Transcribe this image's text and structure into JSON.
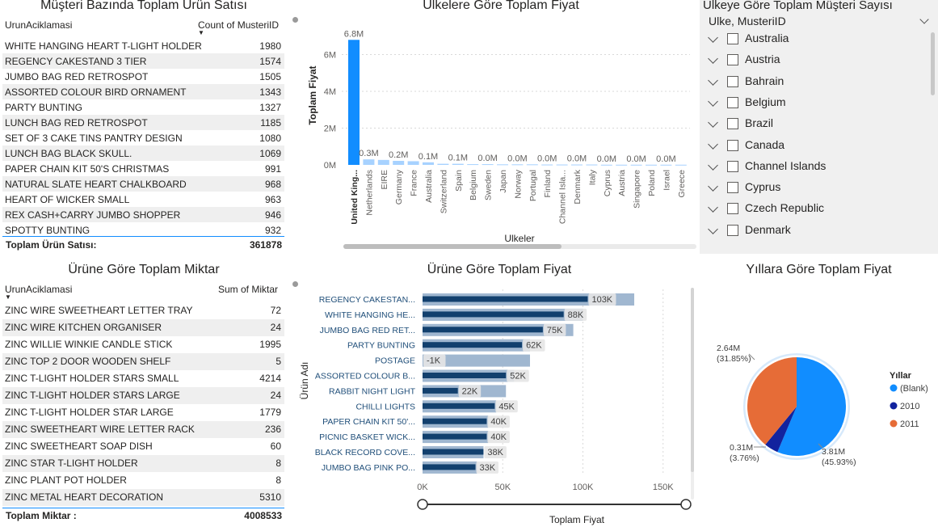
{
  "t1": {
    "title": "Müşteri Bazında Toplam Ürün Satısı",
    "col1": "UrunAciklamasi",
    "col2": "Count of MusteriID",
    "rows": [
      {
        "name": "WHITE HANGING HEART T-LIGHT HOLDER",
        "value": "1980"
      },
      {
        "name": "REGENCY CAKESTAND 3 TIER",
        "value": "1574"
      },
      {
        "name": "JUMBO BAG RED RETROSPOT",
        "value": "1505"
      },
      {
        "name": "ASSORTED COLOUR BIRD ORNAMENT",
        "value": "1343"
      },
      {
        "name": "PARTY BUNTING",
        "value": "1327"
      },
      {
        "name": "LUNCH BAG RED RETROSPOT",
        "value": "1185"
      },
      {
        "name": "SET OF 3 CAKE TINS PANTRY DESIGN",
        "value": "1080"
      },
      {
        "name": "LUNCH BAG BLACK SKULL.",
        "value": "1069"
      },
      {
        "name": "PAPER CHAIN KIT 50'S CHRISTMAS",
        "value": "991"
      },
      {
        "name": "NATURAL SLATE HEART CHALKBOARD",
        "value": "968"
      },
      {
        "name": "HEART OF WICKER SMALL",
        "value": "963"
      },
      {
        "name": "REX CASH+CARRY JUMBO SHOPPER",
        "value": "946"
      },
      {
        "name": "SPOTTY BUNTING",
        "value": "932"
      }
    ],
    "total_label": "Toplam Ürün Satısı:",
    "total_value": "361878"
  },
  "t2": {
    "title": "Ürüne Göre Toplam Miktar",
    "col1": "UrunAciklamasi",
    "col2": "Sum of Miktar",
    "rows": [
      {
        "name": "ZINC WIRE SWEETHEART LETTER TRAY",
        "value": "72"
      },
      {
        "name": "ZINC WIRE KITCHEN ORGANISER",
        "value": "24"
      },
      {
        "name": "ZINC WILLIE WINKIE CANDLE STICK",
        "value": "1995"
      },
      {
        "name": "ZINC TOP 2 DOOR WOODEN SHELF",
        "value": "5"
      },
      {
        "name": "ZINC T-LIGHT HOLDER STARS SMALL",
        "value": "4214"
      },
      {
        "name": "ZINC T-LIGHT HOLDER STARS LARGE",
        "value": "24"
      },
      {
        "name": "ZINC T-LIGHT HOLDER STAR LARGE",
        "value": "1779"
      },
      {
        "name": "ZINC SWEETHEART WIRE LETTER RACK",
        "value": "236"
      },
      {
        "name": "ZINC SWEETHEART SOAP DISH",
        "value": "60"
      },
      {
        "name": "ZINC STAR T-LIGHT HOLDER",
        "value": "8"
      },
      {
        "name": "ZINC PLANT POT HOLDER",
        "value": "8"
      },
      {
        "name": "ZINC METAL HEART DECORATION",
        "value": "5310"
      }
    ],
    "total_label": "Toplam Miktar :",
    "total_value": "4008533"
  },
  "slicer": {
    "title": "Ulkeye Göre Toplam Müşteri Sayısı",
    "header": "Ulke, MusteriID",
    "items": [
      "Australia",
      "Austria",
      "Bahrain",
      "Belgium",
      "Brazil",
      "Canada",
      "Channel Islands",
      "Cyprus",
      "Czech Republic",
      "Denmark"
    ]
  },
  "chart_data": [
    {
      "type": "bar",
      "title": "Ulkelere Göre Toplam Fiyat",
      "xlabel": "Ulkeler",
      "ylabel": "Toplam Fiyat",
      "categories": [
        "United King...",
        "Netherlands",
        "EIRE",
        "Germany",
        "France",
        "Australia",
        "Switzerland",
        "Spain",
        "Belgium",
        "Sweden",
        "Japan",
        "Norway",
        "Portugal",
        "Finland",
        "Channel Isla...",
        "Denmark",
        "Italy",
        "Cyprus",
        "Austria",
        "Singapore",
        "Poland",
        "Israel",
        "Greece"
      ],
      "values": [
        6.8,
        0.3,
        0.27,
        0.22,
        0.2,
        0.14,
        0.06,
        0.06,
        0.04,
        0.04,
        0.03,
        0.03,
        0.03,
        0.02,
        0.02,
        0.02,
        0.02,
        0.01,
        0.01,
        0.01,
        0.01,
        0.01,
        0.01
      ],
      "data_labels": [
        "6.8M",
        "0.3M",
        "",
        "0.2M",
        "",
        "0.1M",
        "",
        "0.1M",
        "",
        "0.0M",
        "",
        "0.0M",
        "",
        "0.0M",
        "",
        "0.0M",
        "",
        "0.0M",
        "",
        "0.0M",
        "",
        "0.0M",
        ""
      ],
      "ylim": [
        0,
        8
      ],
      "yticks": [
        "0M",
        "2M",
        "4M",
        "6M"
      ],
      "colors": {
        "highlight": "#118DFF",
        "other": "#A7D2FF"
      },
      "grid": true
    },
    {
      "type": "bar",
      "orientation": "horizontal",
      "title": "Ürüne Göre Toplam Fiyat",
      "xlabel": "Toplam Fiyat",
      "ylabel": "Ürün Adı",
      "categories": [
        "REGENCY CAKESTAN...",
        "WHITE HANGING HE...",
        "JUMBO BAG RED RET...",
        "PARTY BUNTING",
        "POSTAGE",
        "ASSORTED COLOUR B...",
        "RABBIT NIGHT LIGHT",
        "CHILLI LIGHTS",
        "PAPER CHAIN KIT 50'...",
        "PICNIC BASKET WICK...",
        "BLACK RECORD COVE...",
        "JUMBO BAG PINK PO..."
      ],
      "series": [
        {
          "name": "Target",
          "values": [
            132,
            100,
            94,
            67,
            67,
            57,
            52,
            46,
            41,
            41,
            38,
            34
          ]
        },
        {
          "name": "Value",
          "values": [
            103,
            88,
            75,
            62,
            -1,
            52,
            22,
            45,
            40,
            40,
            38,
            33
          ]
        }
      ],
      "data_labels": [
        "103K",
        "88K",
        "75K",
        "62K",
        "-1K",
        "52K",
        "22K",
        "45K",
        "40K",
        "40K",
        "38K",
        "33K"
      ],
      "xlim": [
        0,
        160
      ],
      "xticks": [
        "0K",
        "50K",
        "100K",
        "150K"
      ],
      "colors": {
        "value": "#12406E",
        "target": "#A0B7D0"
      }
    },
    {
      "type": "pie",
      "title": "Yıllara Göre Toplam Fiyat",
      "legend_title": "Yıllar",
      "legend_position": "right",
      "slices": [
        {
          "label": "(Blank)",
          "value": 3.81,
          "display": "3.81M",
          "pct": "(45.93%)",
          "color": "#118DFF"
        },
        {
          "label": "2010",
          "value": 0.31,
          "display": "0.31M",
          "pct": "(3.76%)",
          "color": "#12239E"
        },
        {
          "label": "2011",
          "value": 2.64,
          "display": "2.64M",
          "pct": "(31.85%)",
          "color": "#E66C37"
        }
      ]
    }
  ]
}
